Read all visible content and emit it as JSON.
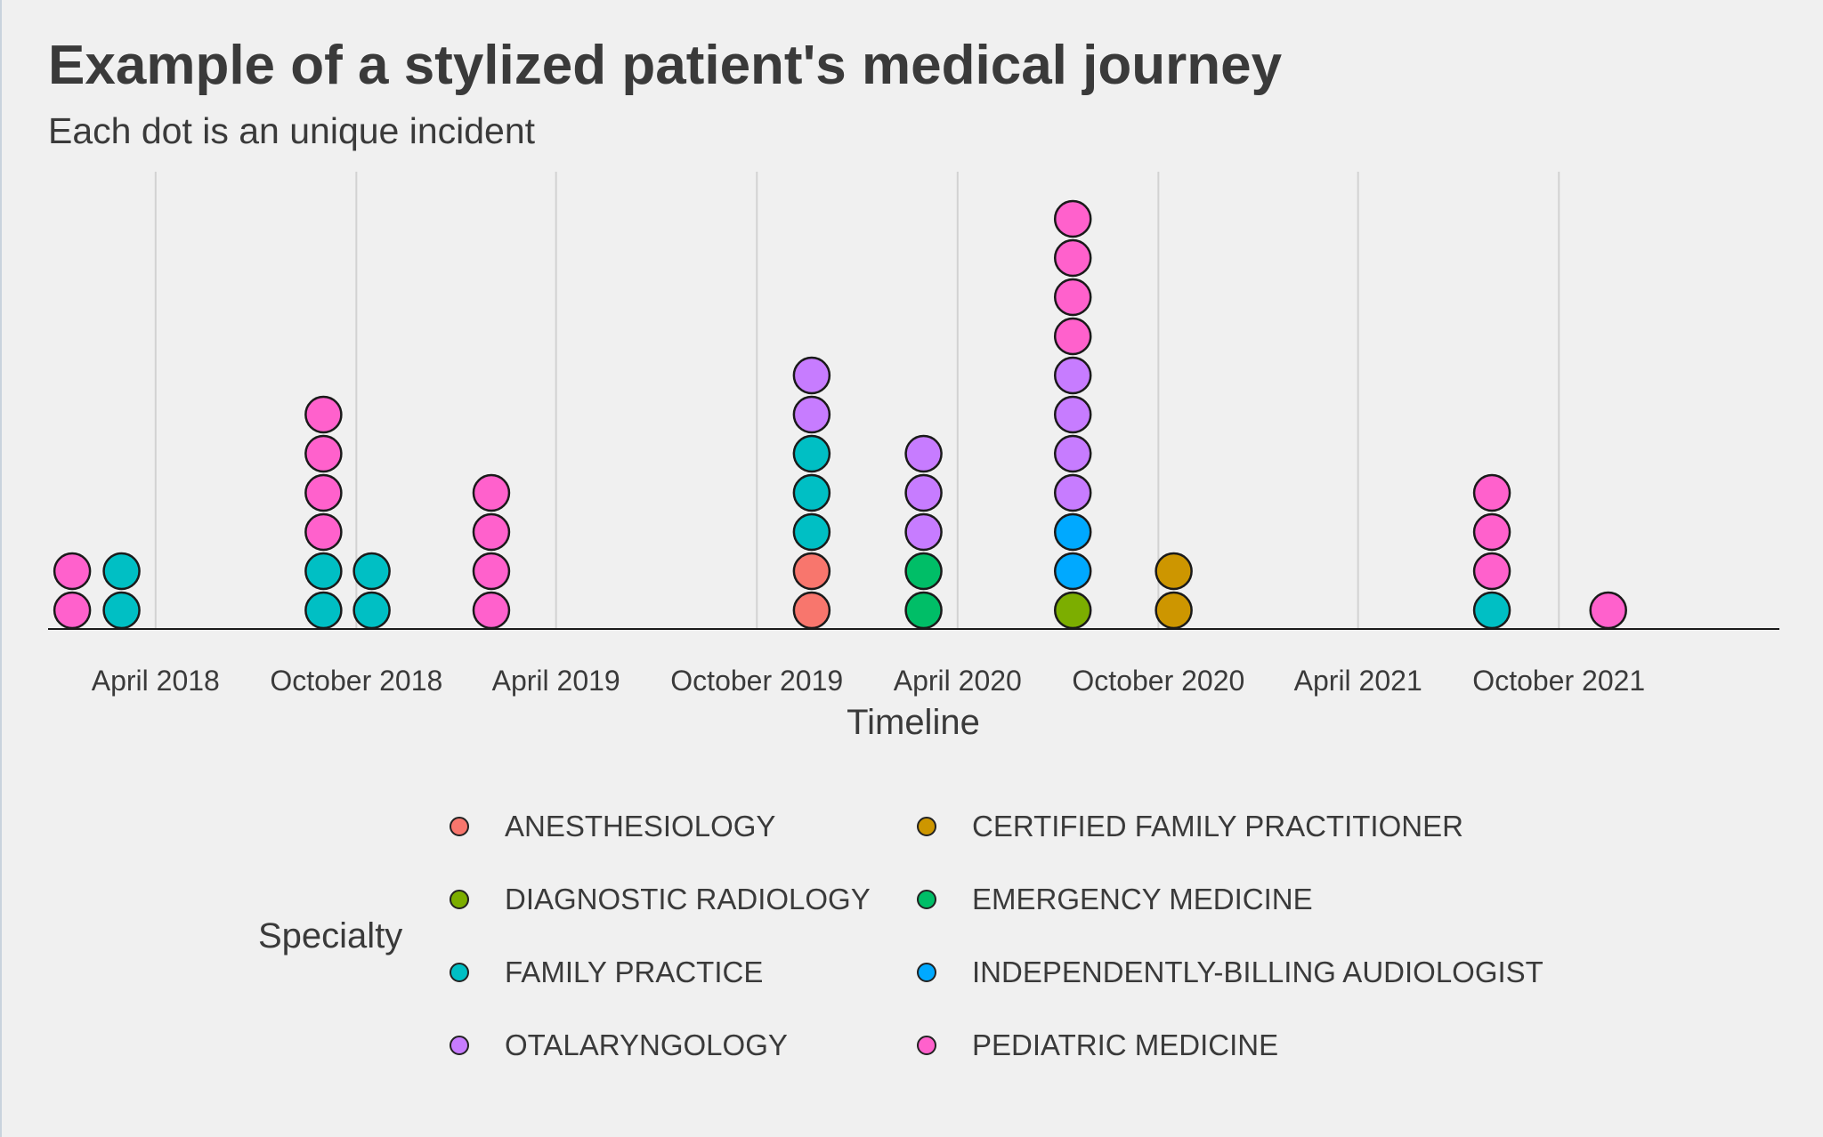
{
  "chart_data": {
    "type": "scatter",
    "title": "Example of a stylized patient's medical journey",
    "subtitle": "Each dot is an unique incident",
    "xlabel": "Timeline",
    "ylabel": "",
    "x_ticks": [
      "April 2018",
      "October 2018",
      "April 2019",
      "October 2019",
      "April 2020",
      "October 2020",
      "April 2021",
      "October 2021"
    ],
    "x_tick_dates": [
      "2018-04-01",
      "2018-10-01",
      "2019-04-01",
      "2019-10-01",
      "2020-04-01",
      "2020-10-01",
      "2021-04-01",
      "2021-10-01"
    ],
    "xlim": [
      "2017-12-24",
      "2022-04-20"
    ],
    "grid": "vertical major gridlines",
    "legend": {
      "title": "Specialty",
      "position": "bottom",
      "columns": 2
    },
    "specialties": [
      {
        "name": "ANESTHESIOLOGY",
        "color": "#F8766D"
      },
      {
        "name": "CERTIFIED FAMILY PRACTITIONER",
        "color": "#CD9600"
      },
      {
        "name": "DIAGNOSTIC RADIOLOGY",
        "color": "#7CAE00"
      },
      {
        "name": "EMERGENCY MEDICINE",
        "color": "#00BE67"
      },
      {
        "name": "FAMILY PRACTICE",
        "color": "#00BFC4"
      },
      {
        "name": "INDEPENDENTLY-BILLING AUDIOLOGIST",
        "color": "#00A9FF"
      },
      {
        "name": "OTALARYNGOLOGY",
        "color": "#C77CFF"
      },
      {
        "name": "PEDIATRIC MEDICINE",
        "color": "#FF61CC"
      }
    ],
    "stacks": [
      {
        "date": "2018-01-15",
        "incidents": [
          "PEDIATRIC MEDICINE",
          "PEDIATRIC MEDICINE"
        ]
      },
      {
        "date": "2018-03-01",
        "incidents": [
          "FAMILY PRACTICE",
          "FAMILY PRACTICE"
        ]
      },
      {
        "date": "2018-09-01",
        "incidents": [
          "FAMILY PRACTICE",
          "FAMILY PRACTICE",
          "PEDIATRIC MEDICINE",
          "PEDIATRIC MEDICINE",
          "PEDIATRIC MEDICINE",
          "PEDIATRIC MEDICINE"
        ]
      },
      {
        "date": "2018-10-15",
        "incidents": [
          "FAMILY PRACTICE",
          "FAMILY PRACTICE"
        ]
      },
      {
        "date": "2019-02-01",
        "incidents": [
          "PEDIATRIC MEDICINE",
          "PEDIATRIC MEDICINE",
          "PEDIATRIC MEDICINE",
          "PEDIATRIC MEDICINE"
        ]
      },
      {
        "date": "2019-11-20",
        "incidents": [
          "ANESTHESIOLOGY",
          "ANESTHESIOLOGY",
          "FAMILY PRACTICE",
          "FAMILY PRACTICE",
          "FAMILY PRACTICE",
          "OTALARYNGOLOGY",
          "OTALARYNGOLOGY"
        ]
      },
      {
        "date": "2020-03-01",
        "incidents": [
          "EMERGENCY MEDICINE",
          "EMERGENCY MEDICINE",
          "OTALARYNGOLOGY",
          "OTALARYNGOLOGY",
          "OTALARYNGOLOGY"
        ]
      },
      {
        "date": "2020-07-15",
        "incidents": [
          "DIAGNOSTIC RADIOLOGY",
          "INDEPENDENTLY-BILLING AUDIOLOGIST",
          "INDEPENDENTLY-BILLING AUDIOLOGIST",
          "OTALARYNGOLOGY",
          "OTALARYNGOLOGY",
          "OTALARYNGOLOGY",
          "OTALARYNGOLOGY",
          "PEDIATRIC MEDICINE",
          "PEDIATRIC MEDICINE",
          "PEDIATRIC MEDICINE",
          "PEDIATRIC MEDICINE"
        ]
      },
      {
        "date": "2020-10-15",
        "incidents": [
          "CERTIFIED FAMILY PRACTITIONER",
          "CERTIFIED FAMILY PRACTITIONER"
        ]
      },
      {
        "date": "2021-08-01",
        "incidents": [
          "FAMILY PRACTICE",
          "PEDIATRIC MEDICINE",
          "PEDIATRIC MEDICINE",
          "PEDIATRIC MEDICINE"
        ]
      },
      {
        "date": "2021-11-15",
        "incidents": [
          "PEDIATRIC MEDICINE"
        ]
      }
    ]
  }
}
